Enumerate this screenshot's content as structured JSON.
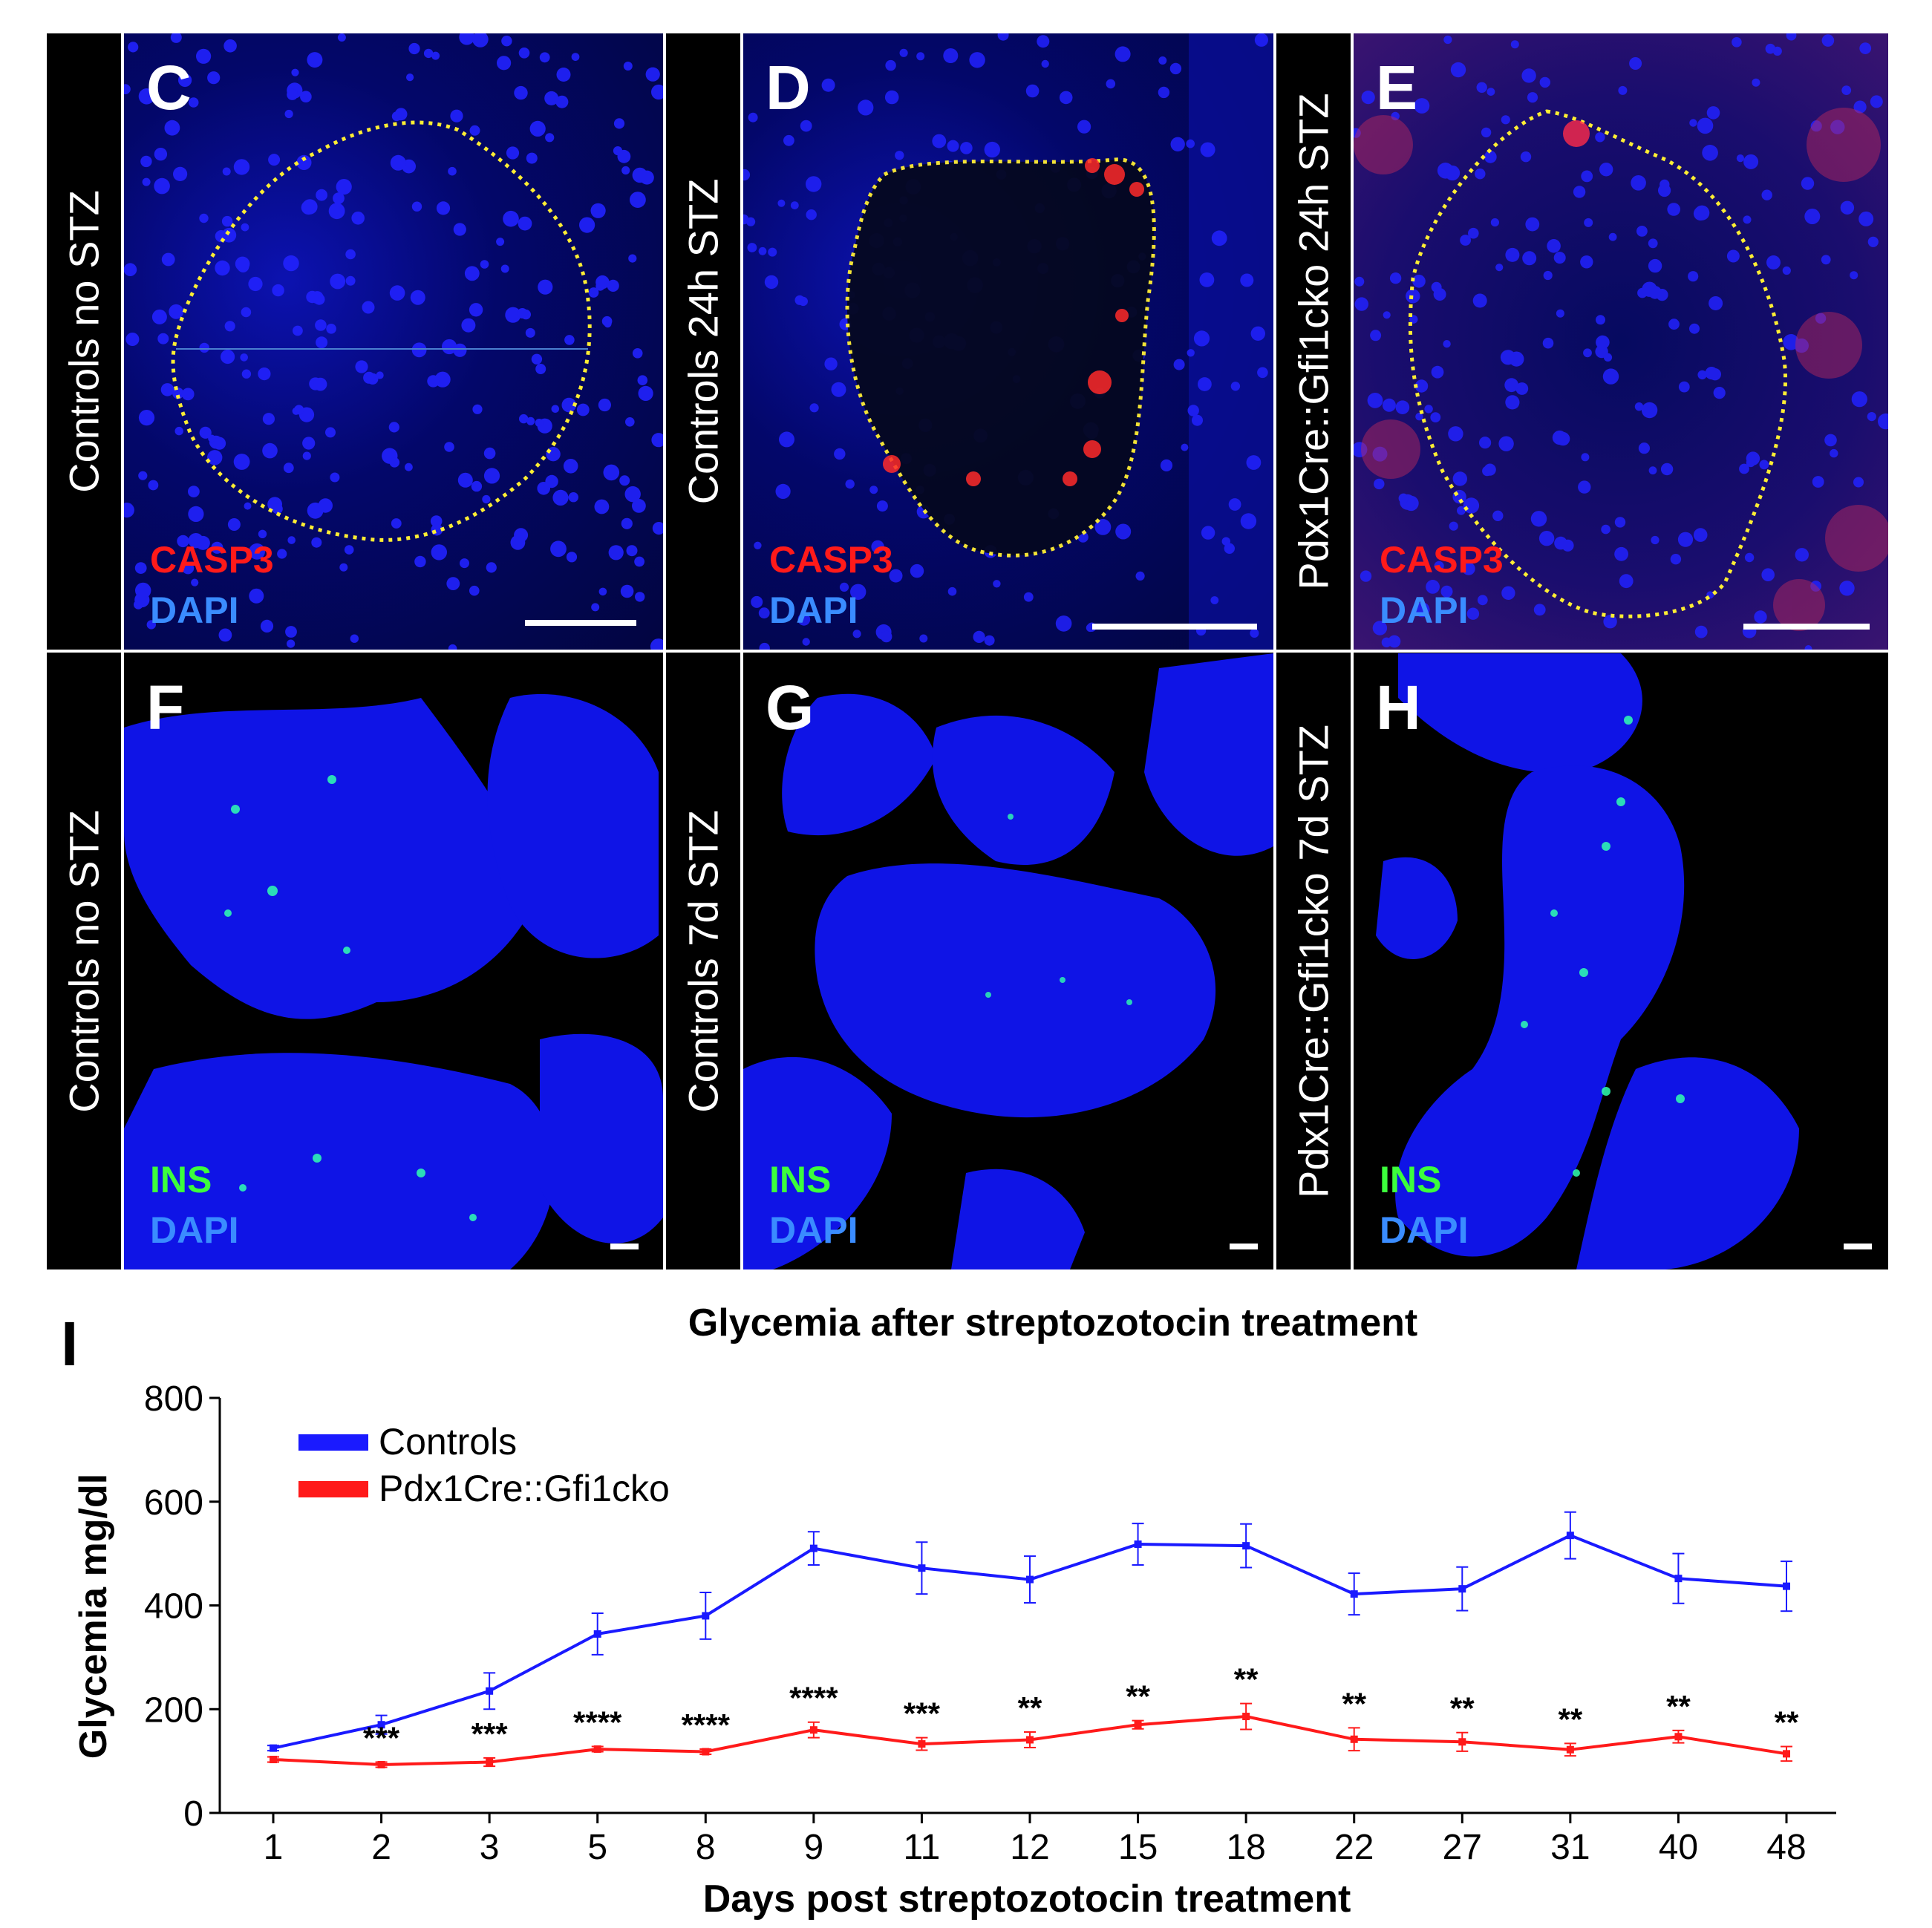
{
  "panels_top": [
    {
      "letter": "C",
      "side_label": "Controls no STZ",
      "stain1": "CASP3",
      "stain2": "DAPI"
    },
    {
      "letter": "D",
      "side_label": "Controls 24h STZ",
      "stain1": "CASP3",
      "stain2": "DAPI"
    },
    {
      "letter": "E",
      "side_label": "Pdx1Cre::Gfi1cko 24h  STZ",
      "stain1": "CASP3",
      "stain2": "DAPI"
    }
  ],
  "panels_bottom": [
    {
      "letter": "F",
      "side_label": "Controls no STZ",
      "stain1": "INS",
      "stain2": "DAPI"
    },
    {
      "letter": "G",
      "side_label": "Controls 7d  STZ",
      "stain1": "INS",
      "stain2": "DAPI"
    },
    {
      "letter": "H",
      "side_label": "Pdx1Cre::Gfi1cko 7d  STZ",
      "stain1": "INS",
      "stain2": "DAPI"
    }
  ],
  "colors": {
    "casp3": "#ff1a1a",
    "dapi": "#3a8cff",
    "ins": "#3cff3c",
    "islet_outline": "#ffee33",
    "controls": "#1a1aff",
    "cko": "#ff1a1a"
  },
  "chart_panel_letter": "I",
  "chart_data": {
    "type": "line",
    "title": "Glycemia after streptozotocin treatment",
    "xlabel": "Days post  streptozotocin treatment",
    "ylabel": "Glycemia mg/dl",
    "ylim": [
      0,
      800
    ],
    "yticks": [
      0,
      200,
      400,
      600,
      800
    ],
    "categories": [
      "1",
      "2",
      "3",
      "5",
      "8",
      "9",
      "11",
      "12",
      "15",
      "18",
      "22",
      "27",
      "31",
      "40",
      "48"
    ],
    "series": [
      {
        "name": "Controls",
        "color": "#1a1aff",
        "values": [
          125,
          170,
          235,
          345,
          380,
          510,
          472,
          450,
          518,
          515,
          422,
          432,
          535,
          452,
          437
        ],
        "errors": [
          5,
          18,
          35,
          40,
          45,
          32,
          50,
          45,
          40,
          42,
          40,
          42,
          45,
          48,
          48
        ]
      },
      {
        "name": "Pdx1Cre::Gfi1cko",
        "color": "#ff1a1a",
        "values": [
          103,
          93,
          98,
          123,
          118,
          160,
          133,
          141,
          170,
          186,
          142,
          137,
          122,
          147,
          114
        ],
        "errors": [
          5,
          5,
          8,
          5,
          5,
          15,
          12,
          15,
          8,
          25,
          22,
          18,
          12,
          12,
          14
        ]
      }
    ],
    "significance": [
      "",
      "***",
      "***",
      "****",
      "****",
      "****",
      "***",
      "**",
      "**",
      "**",
      "**",
      "**",
      "**",
      "**",
      "**"
    ],
    "legend_position": "top-left"
  }
}
